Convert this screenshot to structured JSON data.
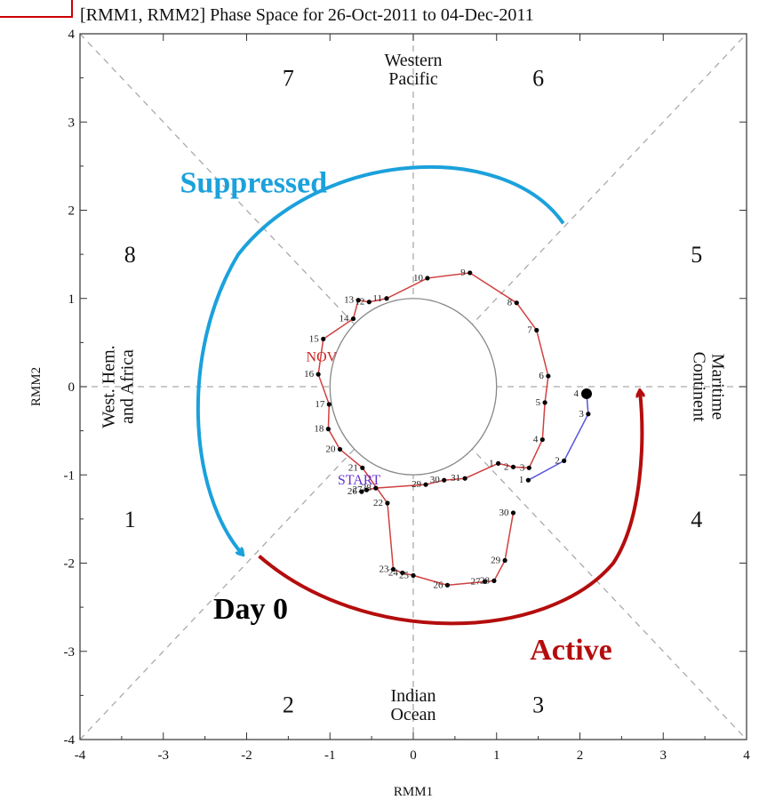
{
  "chart_data": {
    "type": "line",
    "title": "[RMM1, RMM2] Phase Space for 26-Oct-2011 to 04-Dec-2011",
    "xlabel": "RMM1",
    "ylabel": "RMM2",
    "xlim": [
      -4,
      4
    ],
    "ylim": [
      -4,
      4
    ],
    "x_ticks": [
      "-4",
      "-3",
      "-2",
      "-1",
      "0",
      "1",
      "2",
      "3",
      "4"
    ],
    "y_ticks": [
      "4",
      "3",
      "2",
      "1",
      "0",
      "-1",
      "-2",
      "-3",
      "-4"
    ],
    "phase_numbers": [
      {
        "text": "7",
        "x": -1.5,
        "y": 3.5
      },
      {
        "text": "6",
        "x": 1.5,
        "y": 3.5
      },
      {
        "text": "8",
        "x": -3.4,
        "y": 1.5
      },
      {
        "text": "5",
        "x": 3.4,
        "y": 1.5
      },
      {
        "text": "1",
        "x": -3.4,
        "y": -1.5
      },
      {
        "text": "4",
        "x": 3.4,
        "y": -1.5
      },
      {
        "text": "2",
        "x": -1.5,
        "y": -3.6
      },
      {
        "text": "3",
        "x": 1.5,
        "y": -3.6
      }
    ],
    "regions": [
      {
        "lines": [
          "Western",
          "Pacific"
        ],
        "x": 0,
        "y": 3.6,
        "rotate": 0
      },
      {
        "lines": [
          "Indian",
          "Ocean"
        ],
        "x": 0,
        "y": -3.6,
        "rotate": 0
      },
      {
        "lines": [
          "West. Hem.",
          "and Africa"
        ],
        "x": -3.55,
        "y": 0,
        "rotate": -90
      },
      {
        "lines": [
          "Maritime",
          "Continent"
        ],
        "x": 3.55,
        "y": 0,
        "rotate": 90
      }
    ],
    "month_label": {
      "text": "NOV",
      "x": -1.1,
      "y": 0.35,
      "color": "#cc2222"
    },
    "start_label": {
      "text": "START",
      "x": -0.65,
      "y": -1.05,
      "color": "#6633cc"
    },
    "series": [
      {
        "color": "#d04040",
        "points": [
          {
            "label": "26",
            "x": -0.62,
            "y": -1.19
          },
          {
            "label": "27",
            "x": -0.56,
            "y": -1.17
          },
          {
            "label": "28",
            "x": -0.45,
            "y": -1.15
          },
          {
            "label": "29",
            "x": 0.15,
            "y": -1.11
          },
          {
            "label": "30",
            "x": 0.37,
            "y": -1.06
          },
          {
            "label": "31",
            "x": 0.62,
            "y": -1.04
          },
          {
            "label": "1",
            "x": 1.02,
            "y": -0.87
          },
          {
            "label": "2",
            "x": 1.2,
            "y": -0.91
          },
          {
            "label": "3",
            "x": 1.39,
            "y": -0.92
          },
          {
            "label": "4",
            "x": 1.55,
            "y": -0.6
          },
          {
            "label": "5",
            "x": 1.58,
            "y": -0.18
          },
          {
            "label": "6",
            "x": 1.62,
            "y": 0.12
          },
          {
            "label": "7",
            "x": 1.48,
            "y": 0.64
          },
          {
            "label": "8",
            "x": 1.24,
            "y": 0.95
          },
          {
            "label": "9",
            "x": 0.68,
            "y": 1.29
          },
          {
            "label": "10",
            "x": 0.17,
            "y": 1.23
          },
          {
            "label": "11",
            "x": -0.32,
            "y": 1.0
          },
          {
            "label": "12",
            "x": -0.53,
            "y": 0.96
          },
          {
            "label": "13",
            "x": -0.66,
            "y": 0.98
          },
          {
            "label": "14",
            "x": -0.72,
            "y": 0.77
          },
          {
            "label": "15",
            "x": -1.08,
            "y": 0.54
          },
          {
            "label": "16",
            "x": -1.14,
            "y": 0.14
          },
          {
            "label": "17",
            "x": -1.01,
            "y": -0.2
          },
          {
            "label": "18",
            "x": -1.02,
            "y": -0.48
          },
          {
            "label": "20",
            "x": -0.88,
            "y": -0.71
          },
          {
            "label": "21",
            "x": -0.61,
            "y": -0.92
          },
          {
            "label": "22",
            "x": -0.31,
            "y": -1.32
          },
          {
            "label": "23",
            "x": -0.24,
            "y": -2.07
          },
          {
            "label": "24",
            "x": -0.13,
            "y": -2.11
          },
          {
            "label": "25",
            "x": 0.0,
            "y": -2.14
          },
          {
            "label": "26",
            "x": 0.41,
            "y": -2.25
          },
          {
            "label": "27",
            "x": 0.86,
            "y": -2.21
          },
          {
            "label": "28",
            "x": 0.97,
            "y": -2.2
          },
          {
            "label": "29",
            "x": 1.1,
            "y": -1.97
          },
          {
            "label": "30",
            "x": 1.2,
            "y": -1.43
          }
        ]
      },
      {
        "color": "#5555dd",
        "points": [
          {
            "label": "1",
            "x": 1.38,
            "y": -1.06
          },
          {
            "label": "2",
            "x": 1.81,
            "y": -0.84
          },
          {
            "label": "3",
            "x": 2.1,
            "y": -0.31
          },
          {
            "label": "4",
            "x": 2.08,
            "y": -0.08
          }
        ]
      }
    ],
    "circle_radius": 1,
    "annotations": [
      {
        "text": "Suppressed",
        "x": -2.8,
        "y": 2.32,
        "color": "#1ba1dc"
      },
      {
        "text": "Day 0",
        "x": -2.4,
        "y": -2.51,
        "color": "#000000"
      },
      {
        "text": "Active",
        "x": 1.4,
        "y": -2.97,
        "color": "#b40d0d"
      }
    ],
    "grid": true
  }
}
